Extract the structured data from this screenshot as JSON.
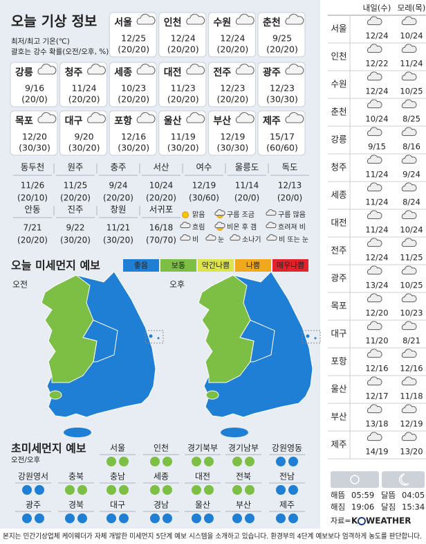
{
  "header": {
    "title": "오늘 기상 정보",
    "subtitle": [
      "최저/최고 기온(℃)",
      "괄호는 강수 확률(오전/오후, %)"
    ]
  },
  "cities": [
    {
      "name": "서울",
      "temp": "12/25",
      "rain": "(20/20)"
    },
    {
      "name": "인천",
      "temp": "12/24",
      "rain": "(20/20)"
    },
    {
      "name": "수원",
      "temp": "12/24",
      "rain": "(20/20)"
    },
    {
      "name": "춘천",
      "temp": "9/25",
      "rain": "(20/20)"
    },
    {
      "name": "강릉",
      "temp": "9/16",
      "rain": "(20/0)"
    },
    {
      "name": "청주",
      "temp": "11/24",
      "rain": "(20/20)"
    },
    {
      "name": "세종",
      "temp": "10/23",
      "rain": "(20/20)"
    },
    {
      "name": "대전",
      "temp": "11/23",
      "rain": "(20/20)"
    },
    {
      "name": "전주",
      "temp": "12/23",
      "rain": "(20/20)"
    },
    {
      "name": "광주",
      "temp": "12/23",
      "rain": "(30/30)"
    },
    {
      "name": "목포",
      "temp": "12/20",
      "rain": "(30/30)"
    },
    {
      "name": "대구",
      "temp": "9/20",
      "rain": "(30/20)"
    },
    {
      "name": "포항",
      "temp": "12/16",
      "rain": "(30/20)"
    },
    {
      "name": "울산",
      "temp": "11/19",
      "rain": "(30/20)"
    },
    {
      "name": "부산",
      "temp": "12/19",
      "rain": "(30/30)"
    },
    {
      "name": "제주",
      "temp": "15/17",
      "rain": "(60/60)"
    }
  ],
  "small_cities": [
    {
      "name": "동두천",
      "temp": "11/26",
      "rain": "(20/10)"
    },
    {
      "name": "원주",
      "temp": "11/25",
      "rain": "(20/20)"
    },
    {
      "name": "충주",
      "temp": "9/24",
      "rain": "(20/20)"
    },
    {
      "name": "서산",
      "temp": "10/24",
      "rain": "(20/20)"
    },
    {
      "name": "여수",
      "temp": "12/19",
      "rain": "(30/60)"
    },
    {
      "name": "울릉도",
      "temp": "11/14",
      "rain": "(20/0)"
    },
    {
      "name": "독도",
      "temp": "12/13",
      "rain": "(20/0)"
    },
    {
      "name": "안동",
      "temp": "7/21",
      "rain": "(20/20)"
    },
    {
      "name": "진주",
      "temp": "9/22",
      "rain": "(30/20)"
    },
    {
      "name": "창원",
      "temp": "11/21",
      "rain": "(30/20)"
    },
    {
      "name": "서귀포",
      "temp": "16/18",
      "rain": "(70/70)"
    }
  ],
  "weather_legend": [
    "맑음",
    "구름 조금",
    "구름 많음",
    "흐림",
    "비온 후 갬",
    "흐려져 비",
    "비",
    "눈",
    "소나기",
    "비 또는 눈"
  ],
  "fine_dust": {
    "title": "오늘 미세먼지 예보",
    "levels": [
      {
        "label": "좋음",
        "color": "#1f7fd4"
      },
      {
        "label": "보통",
        "color": "#7dbf45"
      },
      {
        "label": "약간나쁨",
        "color": "#dce34c"
      },
      {
        "label": "나쁨",
        "color": "#f0a81c"
      },
      {
        "label": "매우나쁨",
        "color": "#e2232b"
      }
    ],
    "maps": [
      "오전",
      "오후"
    ]
  },
  "ultrafine": {
    "title": "초미세먼지 예보",
    "subtitle": "오전/오후",
    "regions": [
      {
        "name": "서울",
        "am": "보통",
        "pm": "보통"
      },
      {
        "name": "인천",
        "am": "보통",
        "pm": "보통"
      },
      {
        "name": "경기북부",
        "am": "보통",
        "pm": "보통"
      },
      {
        "name": "경기남부",
        "am": "보통",
        "pm": "보통"
      },
      {
        "name": "강원영동",
        "am": "좋음",
        "pm": "좋음"
      },
      {
        "name": "강원영서",
        "am": "좋음",
        "pm": "좋음"
      },
      {
        "name": "충북",
        "am": "보통",
        "pm": "보통"
      },
      {
        "name": "충남",
        "am": "보통",
        "pm": "보통"
      },
      {
        "name": "세종",
        "am": "보통",
        "pm": "보통"
      },
      {
        "name": "대전",
        "am": "보통",
        "pm": "보통"
      },
      {
        "name": "전북",
        "am": "보통",
        "pm": "보통"
      },
      {
        "name": "전남",
        "am": "좋음",
        "pm": "좋음"
      },
      {
        "name": "광주",
        "am": "좋음",
        "pm": "좋음"
      },
      {
        "name": "경북",
        "am": "좋음",
        "pm": "좋음"
      },
      {
        "name": "대구",
        "am": "좋음",
        "pm": "좋음"
      },
      {
        "name": "경남",
        "am": "좋음",
        "pm": "좋음"
      },
      {
        "name": "울산",
        "am": "좋음",
        "pm": "좋음"
      },
      {
        "name": "부산",
        "am": "좋음",
        "pm": "좋음"
      },
      {
        "name": "제주",
        "am": "좋음",
        "pm": "좋음"
      }
    ]
  },
  "forecast": {
    "days": [
      "내일(수)",
      "모레(목)"
    ],
    "rows": [
      {
        "city": "서울",
        "values": [
          "12/24",
          "10/24"
        ]
      },
      {
        "city": "인천",
        "values": [
          "12/22",
          "11/24"
        ]
      },
      {
        "city": "수원",
        "values": [
          "12/24",
          "10/25"
        ]
      },
      {
        "city": "춘천",
        "values": [
          "10/24",
          "8/25"
        ]
      },
      {
        "city": "강릉",
        "values": [
          "9/15",
          "8/16"
        ]
      },
      {
        "city": "청주",
        "values": [
          "11/24",
          "9/24"
        ]
      },
      {
        "city": "세종",
        "values": [
          "11/24",
          "8/24"
        ]
      },
      {
        "city": "대전",
        "values": [
          "11/24",
          "10/24"
        ]
      },
      {
        "city": "전주",
        "values": [
          "12/24",
          "11/25"
        ]
      },
      {
        "city": "광주",
        "values": [
          "13/24",
          "10/25"
        ]
      },
      {
        "city": "목포",
        "values": [
          "12/20",
          "10/23"
        ]
      },
      {
        "city": "대구",
        "values": [
          "11/20",
          "8/21"
        ]
      },
      {
        "city": "포항",
        "values": [
          "12/16",
          "12/16"
        ]
      },
      {
        "city": "울산",
        "values": [
          "12/17",
          "11/18"
        ]
      },
      {
        "city": "부산",
        "values": [
          "13/18",
          "12/19"
        ]
      },
      {
        "city": "제주",
        "values": [
          "14/19",
          "13/20"
        ]
      }
    ]
  },
  "sun_moon": [
    {
      "label": "해뜸",
      "time": "05:59"
    },
    {
      "label": "해짐",
      "time": "19:06"
    },
    {
      "label": "달뜸",
      "time": "04:05"
    },
    {
      "label": "달짐",
      "time": "15:34"
    }
  ],
  "source": {
    "label": "자료=",
    "name": [
      "K",
      "WEATHER"
    ]
  },
  "footer": "본지는 민간기상업체 케이웨더가 자체 개발한 미세먼지 5단계 예보 시스템을 소개하고 있습니다. 환경부의 4단계 예보보다 엄격하게 농도를 판단합니다."
}
